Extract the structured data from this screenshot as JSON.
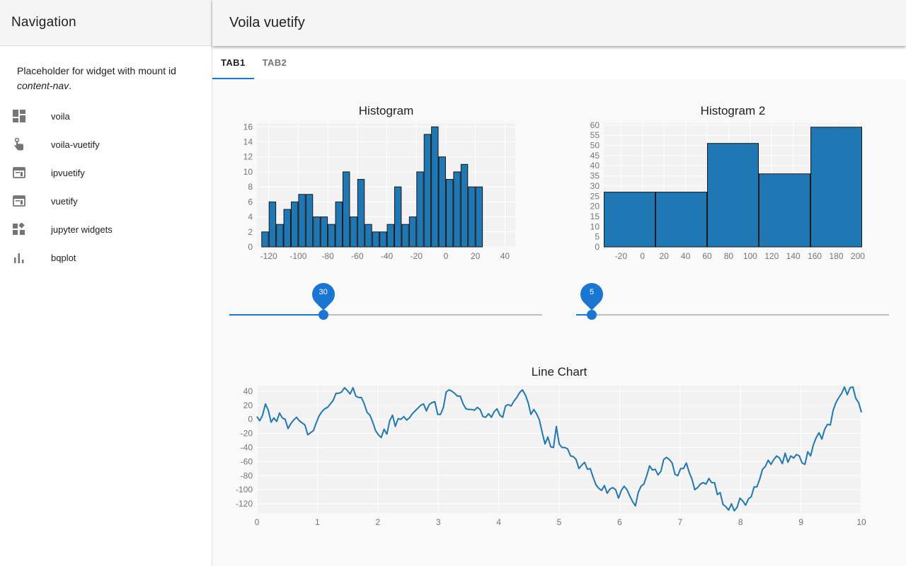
{
  "sidebar": {
    "title": "Navigation",
    "placeholder_text": "Placeholder for widget with mount id",
    "placeholder_id": "content-nav",
    "placeholder_suffix": ".",
    "items": [
      {
        "label": "voila",
        "icon": "dashboard-icon"
      },
      {
        "label": "voila-vuetify",
        "icon": "touch-icon"
      },
      {
        "label": "ipvuetify",
        "icon": "web-icon"
      },
      {
        "label": "vuetify",
        "icon": "web-icon"
      },
      {
        "label": "jupyter widgets",
        "icon": "widgets-icon"
      },
      {
        "label": "bqplot",
        "icon": "bar-chart-icon"
      }
    ]
  },
  "header": {
    "title": "Voila vuetify"
  },
  "tabs": [
    {
      "label": "TAB1",
      "active": true
    },
    {
      "label": "TAB2",
      "active": false
    }
  ],
  "sliders": [
    {
      "value": 30,
      "min": 0,
      "max": 100,
      "label": "30"
    },
    {
      "value": 5,
      "min": 0,
      "max": 100,
      "label": "5"
    }
  ],
  "colors": {
    "accent": "#1976d2",
    "bar": "#1f77b4",
    "sidebar_bg": "#ffffff",
    "header_bg": "#f5f5f5"
  },
  "chart_data": [
    {
      "type": "bar",
      "title": "Histogram",
      "bin_start": -125,
      "bin_width": 5,
      "values": [
        2,
        6,
        3,
        5,
        6,
        7,
        7,
        4,
        4,
        3,
        6,
        10,
        4,
        9,
        3,
        2,
        2,
        3,
        8,
        3,
        4,
        10,
        15,
        16,
        12,
        9,
        10,
        11,
        8,
        8
      ],
      "xticks": [
        -120,
        -100,
        -80,
        -60,
        -40,
        -20,
        0,
        20,
        40
      ],
      "yticks": [
        0,
        2,
        4,
        6,
        8,
        10,
        12,
        14,
        16
      ],
      "xlim": [
        -128,
        47
      ],
      "ylim": [
        0,
        16.5
      ]
    },
    {
      "type": "bar",
      "title": "Histogram 2",
      "bin_edges": [
        -36,
        12,
        60,
        108,
        156,
        204
      ],
      "values": [
        27,
        27,
        51,
        36,
        59
      ],
      "xticks": [
        -20,
        0,
        20,
        40,
        60,
        80,
        100,
        120,
        140,
        160,
        180,
        200
      ],
      "yticks": [
        0,
        5,
        10,
        15,
        20,
        25,
        30,
        35,
        40,
        45,
        50,
        55,
        60
      ],
      "xlim": [
        -36,
        204
      ],
      "ylim": [
        0,
        61
      ]
    },
    {
      "type": "line",
      "title": "Line Chart",
      "x_start": 0,
      "x_end": 10,
      "y": [
        4,
        -2,
        6,
        22,
        13,
        -4,
        2,
        -3,
        9,
        2,
        0,
        -13,
        -6,
        -1,
        3,
        -2,
        -5,
        -8,
        -22,
        -19,
        -16,
        -5,
        5,
        11,
        15,
        17,
        22,
        27,
        37,
        37,
        39,
        45,
        41,
        36,
        45,
        33,
        31,
        31,
        22,
        10,
        6,
        -4,
        -16,
        -22,
        -26,
        -14,
        -21,
        -2,
        6,
        -10,
        1,
        0,
        4,
        -1,
        2,
        8,
        12,
        16,
        20,
        22,
        12,
        21,
        24,
        25,
        7,
        7,
        17,
        39,
        42,
        40,
        37,
        33,
        33,
        22,
        15,
        14,
        14,
        13,
        17,
        14,
        4,
        3,
        8,
        3,
        11,
        15,
        6,
        3,
        19,
        21,
        19,
        26,
        31,
        38,
        42,
        35,
        24,
        7,
        14,
        8,
        -1,
        -19,
        -35,
        -25,
        -39,
        -40,
        -10,
        -35,
        -40,
        -40,
        -42,
        -52,
        -53,
        -57,
        -70,
        -65,
        -61,
        -71,
        -70,
        -82,
        -93,
        -98,
        -101,
        -94,
        -105,
        -99,
        -97,
        -100,
        -112,
        -101,
        -95,
        -100,
        -109,
        -117,
        -123,
        -104,
        -95,
        -92,
        -80,
        -66,
        -72,
        -71,
        -79,
        -74,
        -57,
        -54,
        -57,
        -62,
        -78,
        -80,
        -70,
        -70,
        -62,
        -75,
        -85,
        -100,
        -97,
        -92,
        -90,
        -92,
        -84,
        -90,
        -90,
        -107,
        -104,
        -121,
        -124,
        -129,
        -120,
        -130,
        -125,
        -112,
        -116,
        -122,
        -113,
        -110,
        -96,
        -96,
        -85,
        -71,
        -67,
        -58,
        -64,
        -57,
        -52,
        -55,
        -63,
        -48,
        -61,
        -52,
        -55,
        -50,
        -52,
        -62,
        -64,
        -46,
        -52,
        -36,
        -26,
        -19,
        -28,
        -14,
        -7,
        -8,
        13,
        24,
        31,
        37,
        46,
        35,
        45,
        46,
        30,
        24,
        10
      ],
      "xticks": [
        0,
        1,
        2,
        3,
        4,
        5,
        6,
        7,
        8,
        9,
        10
      ],
      "yticks": [
        -120,
        -100,
        -80,
        -60,
        -40,
        -20,
        0,
        20,
        40
      ],
      "xlim": [
        0,
        10
      ],
      "ylim": [
        -133,
        48
      ]
    }
  ]
}
